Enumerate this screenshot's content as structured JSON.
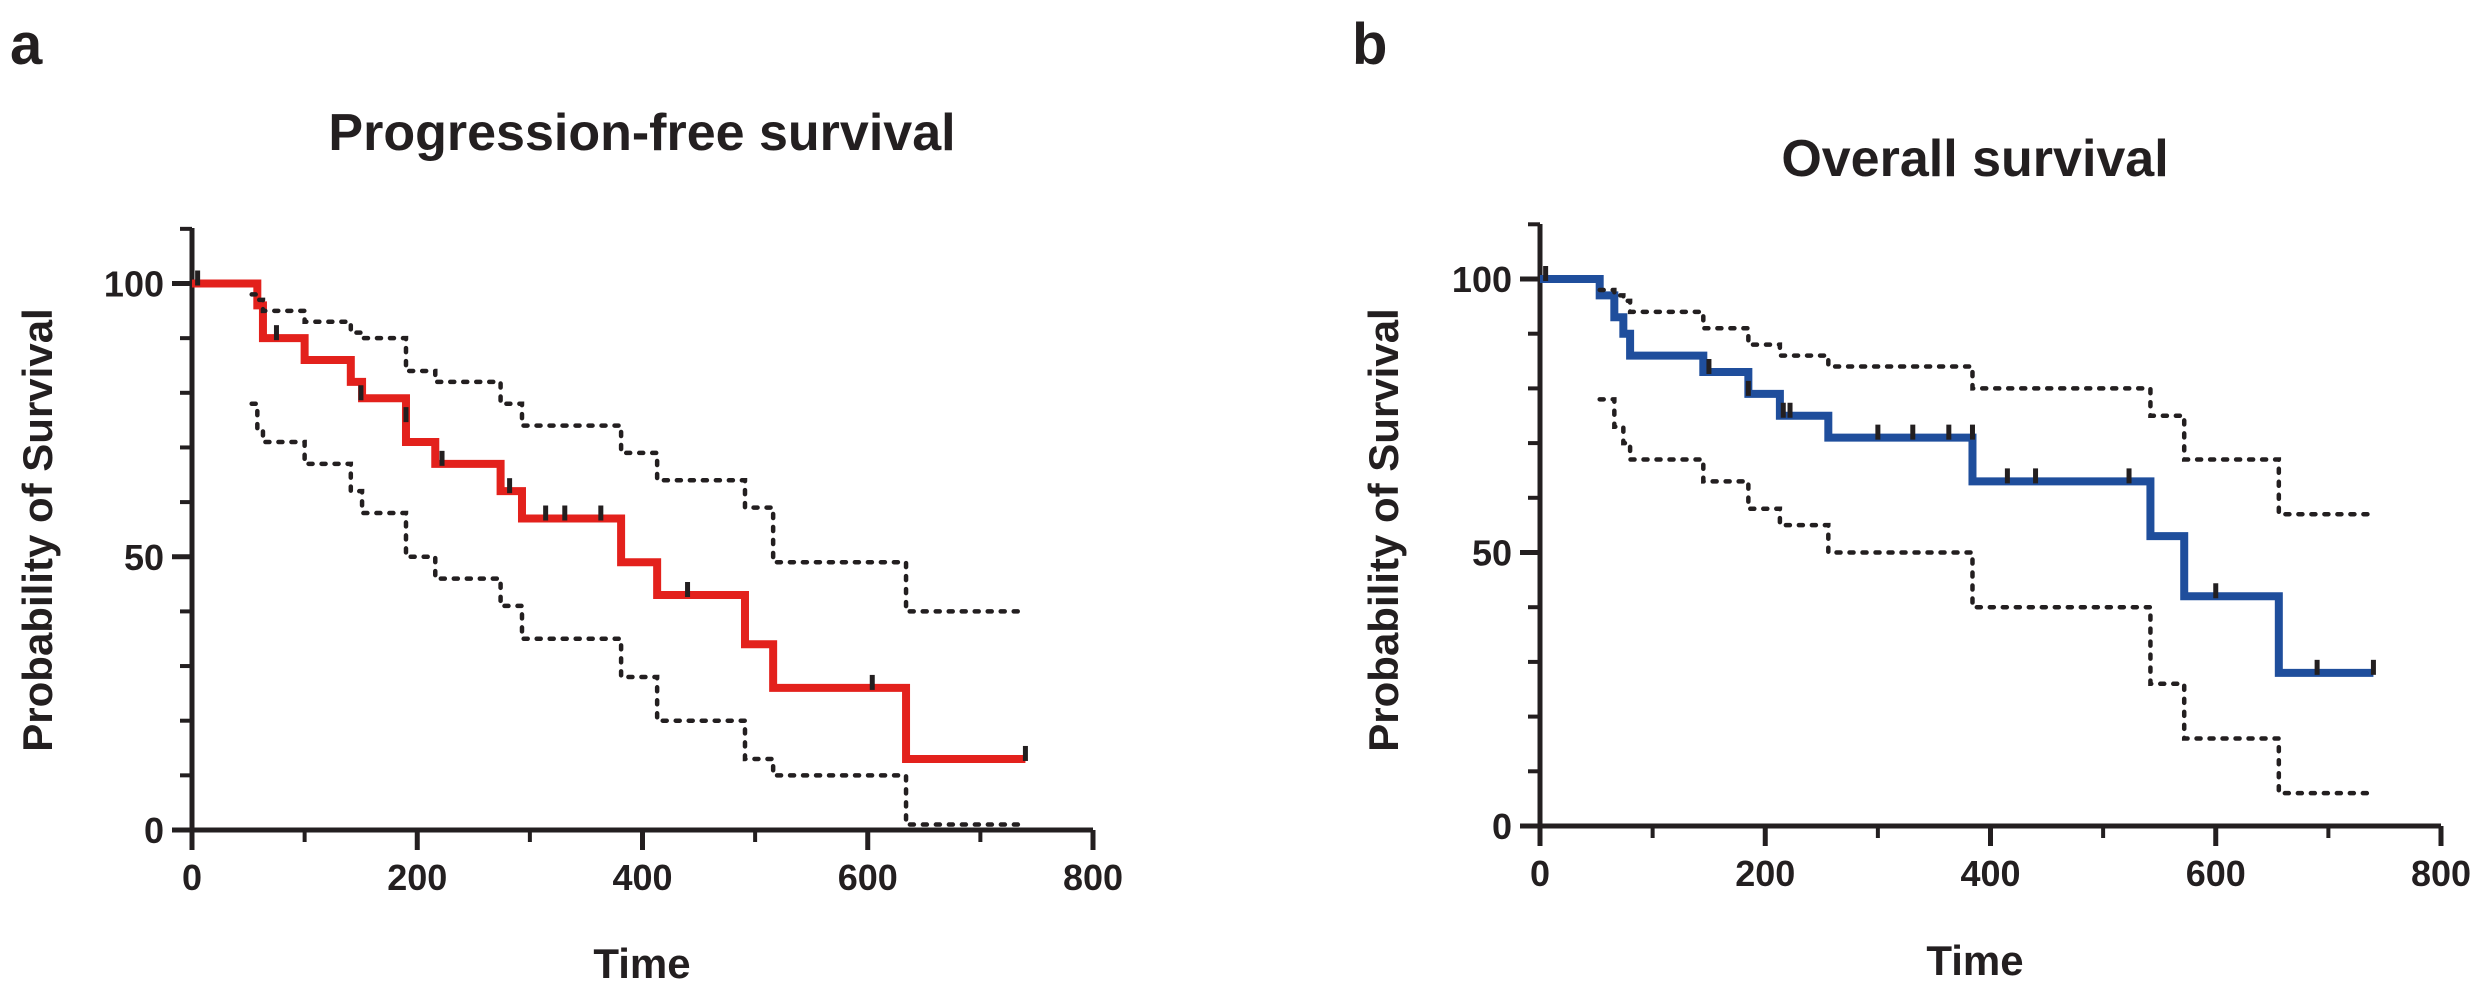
{
  "chart_data": [
    {
      "panel": "a",
      "type": "line",
      "title": "Progression-free survival",
      "xlabel": "Time",
      "ylabel": "Probability of Survival",
      "xlim": [
        0,
        800
      ],
      "ylim": [
        0,
        110
      ],
      "xticks": [
        0,
        200,
        400,
        600,
        800
      ],
      "yticks": [
        0,
        50,
        100
      ],
      "color": "#e3211c",
      "ci_color": "#231f20",
      "series": [
        {
          "name": "survival",
          "style": "step",
          "x": [
            0,
            53,
            58,
            63,
            100,
            141,
            151,
            190,
            216,
            274,
            293,
            381,
            413,
            491,
            516,
            634,
            740
          ],
          "y": [
            100,
            100,
            96,
            90,
            86,
            82,
            79,
            71,
            67,
            62,
            57,
            49,
            43,
            34,
            26,
            13,
            13
          ]
        },
        {
          "name": "upper 95% CI",
          "style": "dotted-step",
          "x": [
            53,
            58,
            63,
            100,
            141,
            151,
            190,
            216,
            274,
            293,
            381,
            413,
            491,
            516,
            634,
            740
          ],
          "y": [
            98,
            97,
            95,
            93,
            91,
            90,
            84,
            82,
            78,
            74,
            69,
            64,
            59,
            49,
            40,
            40
          ]
        },
        {
          "name": "lower 95% CI",
          "style": "dotted-step",
          "x": [
            53,
            58,
            63,
            100,
            141,
            151,
            190,
            216,
            274,
            293,
            381,
            413,
            491,
            516,
            634,
            740
          ],
          "y": [
            78,
            73,
            71,
            67,
            62,
            58,
            50,
            46,
            41,
            35,
            28,
            20,
            13,
            10,
            1,
            1
          ]
        }
      ],
      "censored": {
        "x": [
          5,
          75,
          150,
          190,
          222,
          282,
          314,
          331,
          363,
          440,
          604,
          740
        ],
        "y": [
          100,
          90,
          79,
          75,
          67,
          62,
          57,
          57,
          57,
          43,
          26,
          13
        ]
      }
    },
    {
      "panel": "b",
      "type": "line",
      "title": "Overall survival",
      "xlabel": "Time",
      "ylabel": "Probability of Survival",
      "xlim": [
        0,
        800
      ],
      "ylim": [
        0,
        110
      ],
      "xticks": [
        0,
        200,
        400,
        600,
        800
      ],
      "yticks": [
        0,
        50,
        100
      ],
      "color": "#1f4e9c",
      "ci_color": "#231f20",
      "series": [
        {
          "name": "survival",
          "style": "step",
          "x": [
            0,
            53,
            66,
            74,
            80,
            145,
            185,
            213,
            256,
            384,
            542,
            572,
            656,
            740
          ],
          "y": [
            100,
            97,
            93,
            90,
            86,
            83,
            79,
            75,
            71,
            63,
            53,
            42,
            28,
            28
          ]
        },
        {
          "name": "upper 95% CI",
          "style": "dotted-step",
          "x": [
            53,
            66,
            74,
            80,
            145,
            185,
            213,
            256,
            384,
            542,
            572,
            656,
            740
          ],
          "y": [
            98,
            97,
            96,
            94,
            91,
            88,
            86,
            84,
            80,
            75,
            67,
            57,
            57
          ]
        },
        {
          "name": "lower 95% CI",
          "style": "dotted-step",
          "x": [
            53,
            66,
            74,
            80,
            145,
            185,
            213,
            256,
            384,
            542,
            572,
            656,
            740
          ],
          "y": [
            78,
            73,
            70,
            67,
            63,
            58,
            55,
            50,
            40,
            26,
            16,
            6,
            6
          ]
        }
      ],
      "censored": {
        "x": [
          5,
          150,
          185,
          216,
          222,
          300,
          331,
          363,
          384,
          415,
          440,
          523,
          600,
          690,
          740
        ],
        "y": [
          100,
          83,
          79,
          75,
          75,
          71,
          71,
          71,
          71,
          63,
          63,
          63,
          42,
          28,
          28
        ]
      }
    }
  ]
}
